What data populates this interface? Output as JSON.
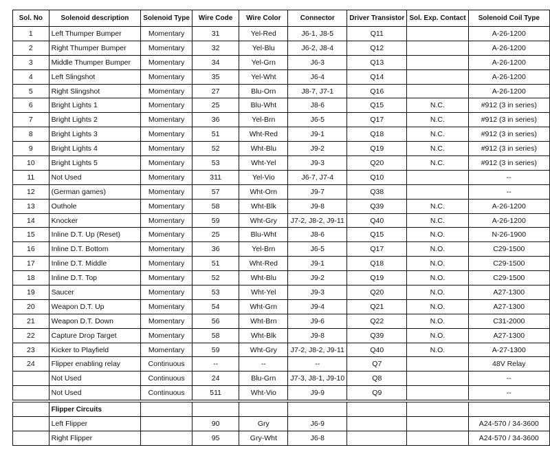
{
  "headers": [
    "Sol. No",
    "Solenoid description",
    "Solenoid Type",
    "Wire Code",
    "Wire Color",
    "Connector",
    "Driver Transistor",
    "Sol. Exp. Contact",
    "Solenoid Coil Type"
  ],
  "rows": [
    [
      "1",
      "Left Thumper Bumper",
      "Momentary",
      "31",
      "Yel-Red",
      "J6-1, J8-5",
      "Q11",
      "",
      "A-26-1200"
    ],
    [
      "2",
      "Right Thumper Bumper",
      "Momentary",
      "32",
      "Yel-Blu",
      "J6-2, J8-4",
      "Q12",
      "",
      "A-26-1200"
    ],
    [
      "3",
      "Middle Thumper Bumper",
      "Momentary",
      "34",
      "Yel-Grn",
      "J6-3",
      "Q13",
      "",
      "A-26-1200"
    ],
    [
      "4",
      "Left Slingshot",
      "Momentary",
      "35",
      "Yel-Wht",
      "J6-4",
      "Q14",
      "",
      "A-26-1200"
    ],
    [
      "5",
      "Right Slingshot",
      "Momentary",
      "27",
      "Blu-Orn",
      "J8-7, J7-1",
      "Q16",
      "",
      "A-26-1200"
    ],
    [
      "6",
      "Bright Lights 1",
      "Momentary",
      "25",
      "Blu-Wht",
      "J8-6",
      "Q15",
      "N.C.",
      "#912 (3 in series)"
    ],
    [
      "7",
      "Bright Lights 2",
      "Momentary",
      "36",
      "Yel-Brn",
      "J6-5",
      "Q17",
      "N.C.",
      "#912 (3 in series)"
    ],
    [
      "8",
      "Bright Lights 3",
      "Momentary",
      "51",
      "Wht-Red",
      "J9-1",
      "Q18",
      "N.C.",
      "#912 (3 in series)"
    ],
    [
      "9",
      "Bright Lights 4",
      "Momentary",
      "52",
      "Wht-Blu",
      "J9-2",
      "Q19",
      "N.C.",
      "#912 (3 in series)"
    ],
    [
      "10",
      "Bright Lights 5",
      "Momentary",
      "53",
      "Wht-Yel",
      "J9-3",
      "Q20",
      "N.C.",
      "#912 (3 in series)"
    ],
    [
      "11",
      "Not Used",
      "Momentary",
      "311",
      "Yel-Vio",
      "J6-7, J7-4",
      "Q10",
      "",
      "--"
    ],
    [
      "12",
      "(German games)",
      "Momentary",
      "57",
      "Wht-Orn",
      "J9-7",
      "Q38",
      "",
      "--"
    ],
    [
      "13",
      "Outhole",
      "Momentary",
      "58",
      "Wht-Blk",
      "J9-8",
      "Q39",
      "N.C.",
      "A-26-1200"
    ],
    [
      "14",
      "Knocker",
      "Momentary",
      "59",
      "Wht-Gry",
      "J7-2, J8-2, J9-11",
      "Q40",
      "N.C.",
      "A-26-1200"
    ],
    [
      "15",
      "Inline D.T. Up (Reset)",
      "Momentary",
      "25",
      "Blu-Wht",
      "J8-6",
      "Q15",
      "N.O.",
      "N-26-1900"
    ],
    [
      "16",
      "Inline D.T. Bottom",
      "Momentary",
      "36",
      "Yel-Brn",
      "J6-5",
      "Q17",
      "N.O.",
      "C29-1500"
    ],
    [
      "17",
      "Inline D.T. Middle",
      "Momentary",
      "51",
      "Wht-Red",
      "J9-1",
      "Q18",
      "N.O.",
      "C29-1500"
    ],
    [
      "18",
      "Inline D.T. Top",
      "Momentary",
      "52",
      "Wht-Blu",
      "J9-2",
      "Q19",
      "N.O.",
      "C29-1500"
    ],
    [
      "19",
      "Saucer",
      "Momentary",
      "53",
      "Wht-Yel",
      "J9-3",
      "Q20",
      "N.O.",
      "A27-1300"
    ],
    [
      "20",
      "Weapon D.T. Up",
      "Momentary",
      "54",
      "Wht-Grn",
      "J9-4",
      "Q21",
      "N.O.",
      "A27-1300"
    ],
    [
      "21",
      "Weapon D.T. Down",
      "Momentary",
      "56",
      "Wht-Brn",
      "J9-6",
      "Q22",
      "N.O.",
      "C31-2000"
    ],
    [
      "22",
      "Capture Drop Target",
      "Momentary",
      "58",
      "Wht-Blk",
      "J9-8",
      "Q39",
      "N.O.",
      "A27-1300"
    ],
    [
      "23",
      "Kicker to Playfield",
      "Momentary",
      "59",
      "Wht-Gry",
      "J7-2, J8-2, J9-11",
      "Q40",
      "N.O.",
      "A-27-1300"
    ],
    [
      "24",
      "Flipper enabling relay",
      "Continuous",
      "--",
      "--",
      "--",
      "Q7",
      "",
      "48V Relay"
    ],
    [
      "",
      "Not Used",
      "Continuous",
      "24",
      "Blu-Grn",
      "J7-3, J8-1, J9-10",
      "Q8",
      "",
      "--"
    ],
    [
      "",
      "Not Used",
      "Continuous",
      "511",
      "Wht-Vio",
      "J9-9",
      "Q9",
      "",
      "--"
    ]
  ],
  "flipper_section": {
    "title": "Flipper Circuits",
    "rows": [
      [
        "",
        "Left Flipper",
        "",
        "90",
        "Gry",
        "J6-9",
        "",
        "",
        "A24-570 / 34-3600"
      ],
      [
        "",
        "Right Flipper",
        "",
        "95",
        "Gry-Wht",
        "J6-8",
        "",
        "",
        "A24-570 / 34-3600"
      ]
    ]
  }
}
